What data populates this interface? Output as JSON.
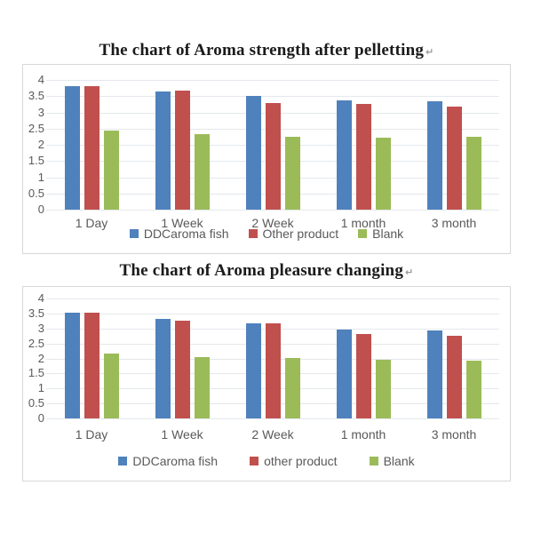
{
  "page": {
    "background": "#ffffff"
  },
  "colors": {
    "series_blue": "#4f81bd",
    "series_red": "#c0504d",
    "series_green": "#9bbb59",
    "gridline": "#e4e8ec",
    "frame_border": "#d8d8d8",
    "axis_text": "#595959",
    "title_text": "#1a1a1a"
  },
  "chart_data": [
    {
      "type": "bar",
      "title": "The chart of Aroma strength after pelletting",
      "title_mark": "↵",
      "categories": [
        "1 Day",
        "1 Week",
        "2 Week",
        "1 month",
        "3 month"
      ],
      "series": [
        {
          "name": "DDCaroma fish",
          "color": "#4f81bd",
          "values": [
            3.82,
            3.65,
            3.5,
            3.37,
            3.33
          ]
        },
        {
          "name": "Other product",
          "color": "#c0504d",
          "values": [
            3.8,
            3.67,
            3.3,
            3.25,
            3.18
          ]
        },
        {
          "name": "Blank",
          "color": "#9bbb59",
          "values": [
            2.45,
            2.32,
            2.26,
            2.23,
            2.25
          ]
        }
      ],
      "xlabel": "",
      "ylabel": "",
      "ylim": [
        0,
        4
      ],
      "y_ticks": [
        "4",
        "3.5",
        "3",
        "2.5",
        "2",
        "1.5",
        "1",
        "0.5",
        "0"
      ],
      "grid": true,
      "legend_position": "bottom"
    },
    {
      "type": "bar",
      "title": "The chart of Aroma pleasure changing",
      "title_mark": "↵",
      "categories": [
        "1 Day",
        "1 Week",
        "2 Week",
        "1 month",
        "3 month"
      ],
      "series": [
        {
          "name": "DDCaroma fish",
          "color": "#4f81bd",
          "values": [
            3.54,
            3.33,
            3.16,
            2.97,
            2.92
          ]
        },
        {
          "name": "other product",
          "color": "#c0504d",
          "values": [
            3.52,
            3.25,
            3.18,
            2.8,
            2.77
          ]
        },
        {
          "name": "Blank",
          "color": "#9bbb59",
          "values": [
            2.15,
            2.05,
            2.01,
            1.97,
            1.94
          ]
        }
      ],
      "xlabel": "",
      "ylabel": "",
      "ylim": [
        0,
        4
      ],
      "y_ticks": [
        "4",
        "3.5",
        "3",
        "2.5",
        "2",
        "1.5",
        "1",
        "0.5",
        "0"
      ],
      "grid": true,
      "legend_position": "bottom"
    }
  ]
}
